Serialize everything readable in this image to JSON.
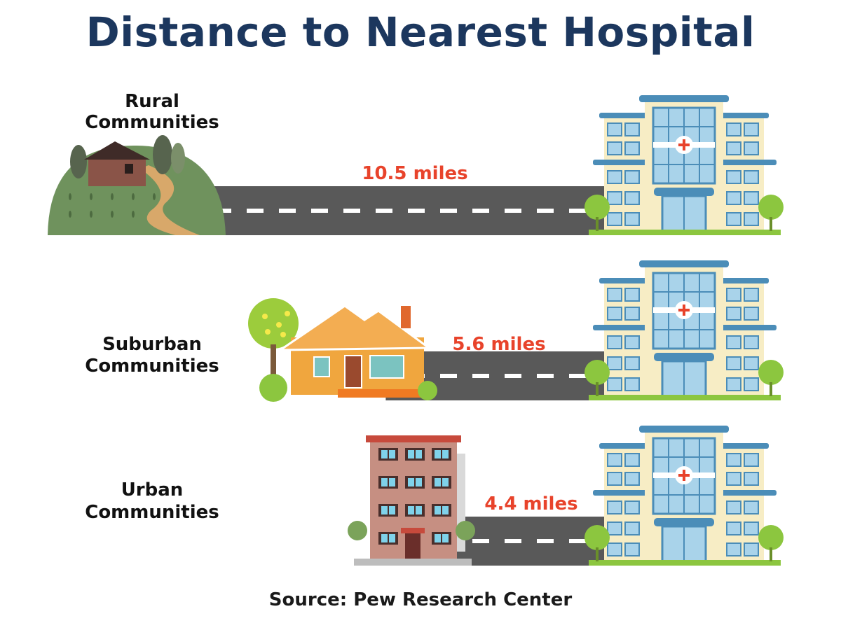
{
  "title": "Distance to Nearest Hospital",
  "source": "Source: Pew Research Center",
  "colors": {
    "title": "#1c375e",
    "distance_label": "#e8432b",
    "road": "#595959",
    "road_dash": "#ffffff",
    "hospital_wall": "#f7edc5",
    "hospital_trim": "#4b8db8",
    "hospital_window": "#a9d3ea",
    "tree": "#8cc63f"
  },
  "icons": {
    "rural": "rural-hill-house-icon",
    "suburban": "suburban-house-icon",
    "urban": "urban-apartment-icon",
    "destination": "hospital-building-icon"
  },
  "chart_data": {
    "type": "bar",
    "title": "Distance to Nearest Hospital",
    "orientation": "horizontal",
    "categories": [
      [
        "Rural",
        "Communities"
      ],
      [
        "Suburban",
        "Communities"
      ],
      [
        "Urban",
        "Communities"
      ]
    ],
    "values": [
      10.5,
      5.6,
      4.4
    ],
    "labels": [
      "10.5 miles",
      "5.6 miles",
      "4.4 miles"
    ],
    "unit": "miles",
    "xlim": [
      0,
      10.5
    ],
    "grid": false,
    "legend": "none"
  }
}
